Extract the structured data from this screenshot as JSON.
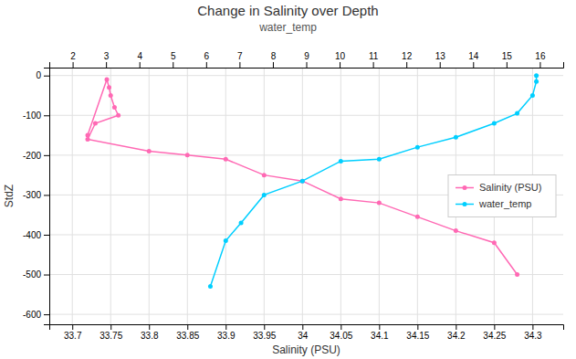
{
  "chart_data": {
    "type": "line",
    "title": "Change in Salinity over Depth",
    "subtitle": "water_temp",
    "xlabel": "Salinity (PSU)",
    "ylabel": "StdZ",
    "xlim": [
      33.67,
      34.34
    ],
    "xticks": [
      33.7,
      33.75,
      33.8,
      33.85,
      33.9,
      33.95,
      34,
      34.05,
      34.1,
      34.15,
      34.2,
      34.25,
      34.3
    ],
    "ylim": [
      -625,
      20
    ],
    "yticks": [
      0,
      -100,
      -200,
      -300,
      -400,
      -500,
      -600
    ],
    "x2lim": [
      1.3,
      16.7
    ],
    "x2ticks": [
      2,
      3,
      4,
      5,
      6,
      7,
      8,
      9,
      10,
      11,
      12,
      13,
      14,
      15,
      16
    ],
    "grid": true,
    "legend": "right",
    "marker": "circle",
    "series": [
      {
        "name": "Salinity (PSU)",
        "color": "#FF69B4",
        "x": [
          33.72,
          33.745,
          33.748,
          33.75,
          33.755,
          33.76,
          33.73,
          33.72,
          33.8,
          33.85,
          33.9,
          33.95,
          34.0,
          34.05,
          34.1,
          34.15,
          34.2,
          34.25,
          34.28
        ],
        "values": [
          -150,
          -10,
          -30,
          -50,
          -80,
          -100,
          -120,
          -160,
          -190,
          -200,
          -210,
          -250,
          -265,
          -310,
          -320,
          -355,
          -390,
          -420,
          -500
        ]
      },
      {
        "name": "water_temp",
        "color": "#00CFFF",
        "x": [
          33.88,
          33.9,
          33.92,
          33.95,
          34.0,
          34.05,
          34.1,
          34.15,
          34.2,
          34.25,
          34.28,
          34.3,
          34.305,
          34.305
        ],
        "values": [
          -530,
          -415,
          -370,
          -300,
          -265,
          -215,
          -210,
          -180,
          -155,
          -120,
          -95,
          -50,
          -15,
          0
        ]
      }
    ]
  }
}
